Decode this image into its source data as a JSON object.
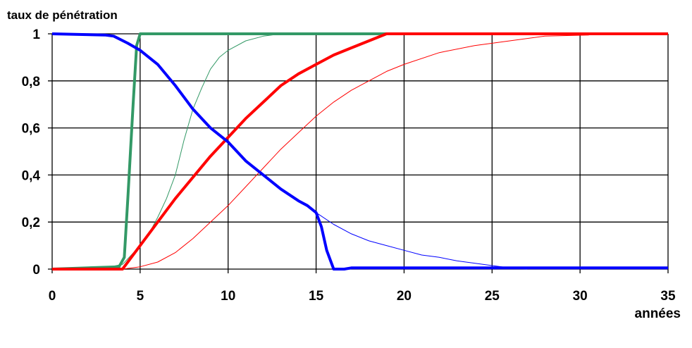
{
  "chart_data": {
    "type": "line",
    "title": "taux de pénétration",
    "xlabel": "années",
    "ylabel": "",
    "xlim": [
      0,
      35
    ],
    "ylim": [
      0,
      1
    ],
    "grid": true,
    "x_ticks": [
      "0",
      "5",
      "10",
      "15",
      "20",
      "25",
      "30",
      "35"
    ],
    "y_ticks": [
      "0",
      "0,2",
      "0,4",
      "0,6",
      "0,8",
      "1"
    ],
    "series": [
      {
        "color": "#339966",
        "width": "thick",
        "points": [
          [
            0,
            0
          ],
          [
            3.8,
            0.01
          ],
          [
            4.1,
            0.05
          ],
          [
            4.3,
            0.3
          ],
          [
            4.6,
            0.7
          ],
          [
            4.8,
            0.95
          ],
          [
            5,
            1
          ],
          [
            35,
            1
          ]
        ]
      },
      {
        "color": "#339966",
        "width": "thin",
        "points": [
          [
            0,
            0
          ],
          [
            3,
            0.005
          ],
          [
            4,
            0.02
          ],
          [
            4.5,
            0.06
          ],
          [
            5,
            0.1
          ],
          [
            5.5,
            0.15
          ],
          [
            6,
            0.22
          ],
          [
            6.5,
            0.3
          ],
          [
            7,
            0.4
          ],
          [
            7.5,
            0.55
          ],
          [
            8,
            0.68
          ],
          [
            8.5,
            0.77
          ],
          [
            9,
            0.85
          ],
          [
            9.5,
            0.9
          ],
          [
            10,
            0.93
          ],
          [
            11,
            0.97
          ],
          [
            12,
            0.99
          ],
          [
            13,
            1
          ],
          [
            35,
            1
          ]
        ]
      },
      {
        "color": "#ff0000",
        "width": "thick",
        "points": [
          [
            0,
            0
          ],
          [
            3.3,
            0
          ],
          [
            4,
            0
          ],
          [
            5,
            0.1
          ],
          [
            6,
            0.2
          ],
          [
            7,
            0.3
          ],
          [
            8,
            0.39
          ],
          [
            9,
            0.48
          ],
          [
            10,
            0.56
          ],
          [
            11,
            0.64
          ],
          [
            12,
            0.71
          ],
          [
            13,
            0.78
          ],
          [
            14,
            0.83
          ],
          [
            15,
            0.87
          ],
          [
            16,
            0.91
          ],
          [
            17,
            0.94
          ],
          [
            18,
            0.97
          ],
          [
            19,
            1
          ],
          [
            35,
            1
          ]
        ]
      },
      {
        "color": "#ff0000",
        "width": "thin",
        "points": [
          [
            0,
            0
          ],
          [
            4,
            0
          ],
          [
            5,
            0.01
          ],
          [
            6,
            0.03
          ],
          [
            7,
            0.07
          ],
          [
            8,
            0.13
          ],
          [
            9,
            0.2
          ],
          [
            10,
            0.27
          ],
          [
            11,
            0.35
          ],
          [
            12,
            0.43
          ],
          [
            13,
            0.51
          ],
          [
            14,
            0.58
          ],
          [
            15,
            0.65
          ],
          [
            16,
            0.71
          ],
          [
            17,
            0.76
          ],
          [
            18,
            0.8
          ],
          [
            19,
            0.84
          ],
          [
            20,
            0.87
          ],
          [
            22,
            0.92
          ],
          [
            24,
            0.95
          ],
          [
            26,
            0.97
          ],
          [
            28,
            0.99
          ],
          [
            30.5,
            0.995
          ]
        ]
      },
      {
        "color": "#0000ff",
        "width": "thick",
        "points": [
          [
            0,
            1
          ],
          [
            3,
            0.995
          ],
          [
            3.5,
            0.99
          ],
          [
            4.3,
            0.96
          ],
          [
            5,
            0.93
          ],
          [
            6,
            0.87
          ],
          [
            7,
            0.78
          ],
          [
            8,
            0.68
          ],
          [
            9,
            0.6
          ],
          [
            10,
            0.54
          ],
          [
            11,
            0.46
          ],
          [
            12,
            0.4
          ],
          [
            13,
            0.34
          ],
          [
            14,
            0.29
          ],
          [
            14.5,
            0.27
          ],
          [
            15,
            0.24
          ],
          [
            15.3,
            0.18
          ],
          [
            15.6,
            0.08
          ],
          [
            16,
            0
          ],
          [
            16.6,
            0
          ],
          [
            17,
            0.005
          ],
          [
            35,
            0.005
          ]
        ]
      },
      {
        "color": "#0000ff",
        "width": "thin",
        "points": [
          [
            0,
            1
          ],
          [
            3,
            0.995
          ],
          [
            3.5,
            0.99
          ],
          [
            4.3,
            0.96
          ],
          [
            5,
            0.93
          ],
          [
            6,
            0.87
          ],
          [
            7,
            0.78
          ],
          [
            8,
            0.68
          ],
          [
            9,
            0.6
          ],
          [
            10,
            0.54
          ],
          [
            11,
            0.46
          ],
          [
            12,
            0.4
          ],
          [
            13,
            0.34
          ],
          [
            14,
            0.29
          ],
          [
            14.5,
            0.27
          ],
          [
            15,
            0.24
          ],
          [
            16,
            0.19
          ],
          [
            17,
            0.15
          ],
          [
            18,
            0.12
          ],
          [
            19,
            0.1
          ],
          [
            20,
            0.08
          ],
          [
            21,
            0.06
          ],
          [
            22,
            0.05
          ],
          [
            23,
            0.035
          ],
          [
            24,
            0.025
          ],
          [
            25,
            0.015
          ],
          [
            26,
            0.005
          ],
          [
            27,
            0
          ]
        ]
      }
    ]
  }
}
